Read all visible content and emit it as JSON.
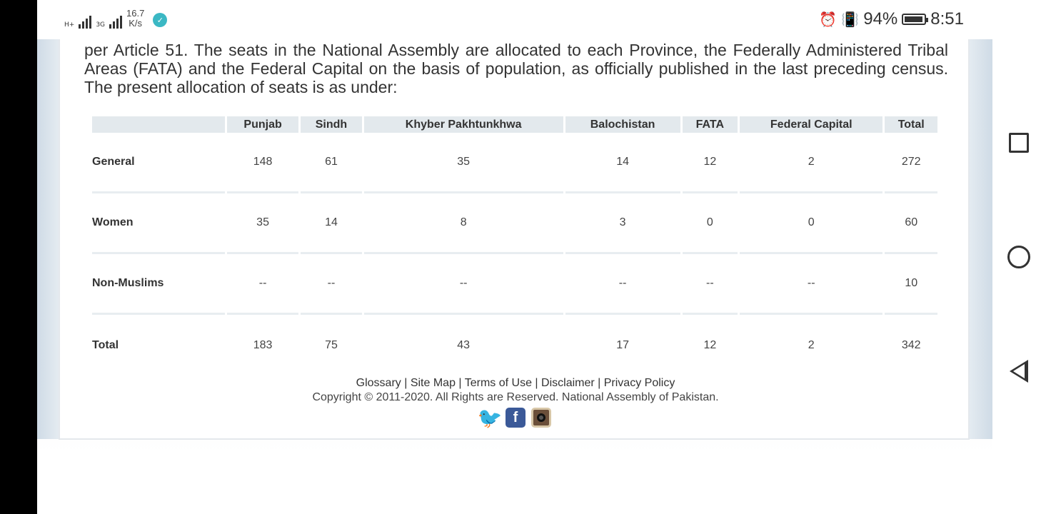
{
  "status_bar": {
    "network_type_1": "H+",
    "network_type_2": "3G",
    "speed_value": "16.7",
    "speed_unit": "K/s",
    "battery_percent": "94%",
    "battery_level": 0.94,
    "time": "8:51"
  },
  "intro": {
    "text": "per Article 51. The seats in the National Assembly are allocated to each Province, the Federally Administered Tribal Areas (FATA) and the Federal Capital on the basis of population, as officially published in the last preceding census. The present allocation of seats is as under:"
  },
  "table": {
    "columns": [
      "",
      "Punjab",
      "Sindh",
      "Khyber Pakhtunkhwa",
      "Balochistan",
      "FATA",
      "Federal Capital",
      "Total"
    ],
    "rows": [
      {
        "label": "General",
        "values": [
          "148",
          "61",
          "35",
          "14",
          "12",
          "2",
          "272"
        ]
      },
      {
        "label": "Women",
        "values": [
          "35",
          "14",
          "8",
          "3",
          "0",
          "0",
          "60"
        ]
      },
      {
        "label": "Non-Muslims",
        "values": [
          "--",
          "--",
          "--",
          "--",
          "--",
          "--",
          "10"
        ]
      },
      {
        "label": "Total",
        "values": [
          "183",
          "75",
          "43",
          "17",
          "12",
          "2",
          "342"
        ]
      }
    ]
  },
  "footer": {
    "links": [
      {
        "label": "Glossary"
      },
      {
        "label": "Site Map"
      },
      {
        "label": "Terms of Use"
      },
      {
        "label": "Disclaimer"
      },
      {
        "label": "Privacy Policy"
      }
    ],
    "separator": " | ",
    "copyright": "Copyright © 2011-2020. All Rights are Reserved. National Assembly of Pakistan.",
    "social": [
      {
        "icon": "twitter-icon",
        "glyph": "🐦"
      },
      {
        "icon": "facebook-icon",
        "glyph": "f"
      },
      {
        "icon": "instagram-icon",
        "glyph": ""
      }
    ]
  },
  "colors": {
    "table_header_bg": "#e3e9ed",
    "twitter": "#1da1f2",
    "facebook": "#3b5998"
  }
}
